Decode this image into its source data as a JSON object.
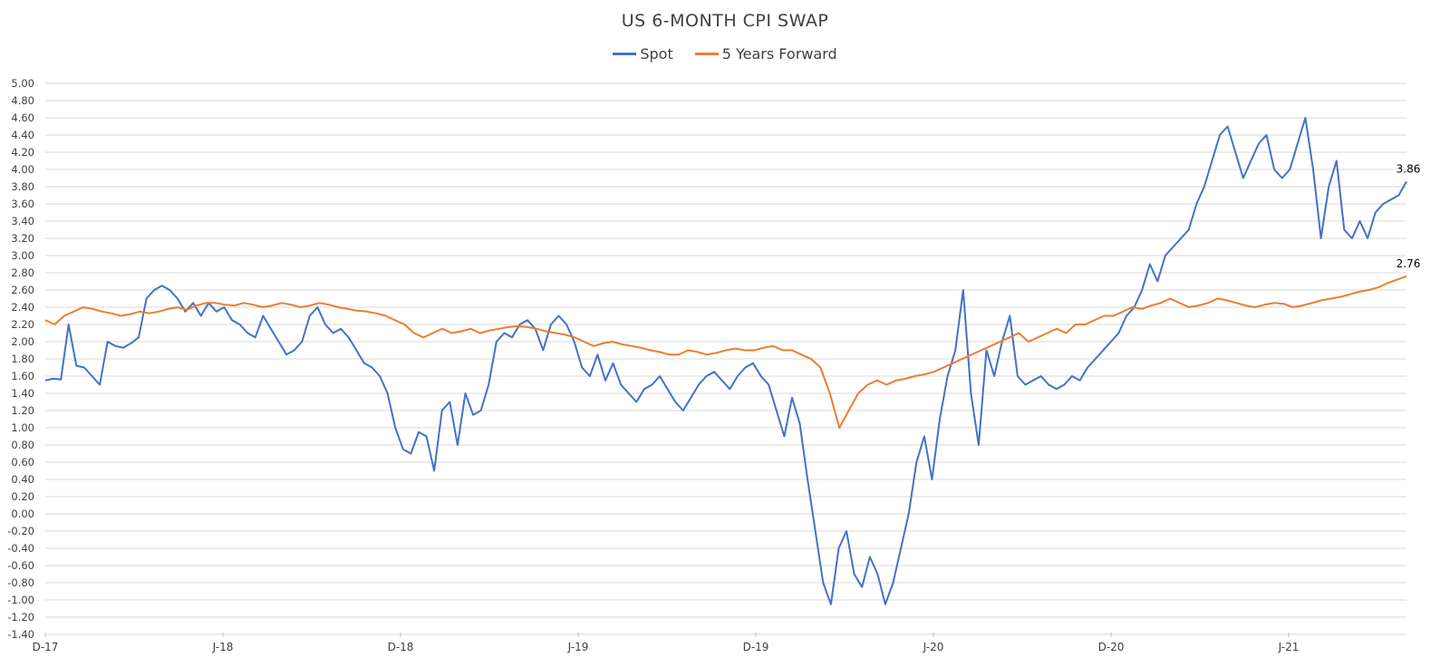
{
  "chart_data": {
    "type": "line",
    "title": "US 6-MONTH CPI SWAP",
    "xlabel": "",
    "ylabel": "",
    "ylim": [
      -1.4,
      5.0
    ],
    "y_ticks": [
      "5.00",
      "4.80",
      "4.60",
      "4.40",
      "4.20",
      "4.00",
      "3.80",
      "3.60",
      "3.40",
      "3.20",
      "3.00",
      "2.80",
      "2.60",
      "2.40",
      "2.20",
      "2.00",
      "1.80",
      "1.60",
      "1.40",
      "1.20",
      "1.00",
      "0.80",
      "0.60",
      "0.40",
      "0.20",
      "0.00",
      "-0.20",
      "-0.40",
      "-0.60",
      "-0.80",
      "-1.00",
      "-1.20",
      "-1.40"
    ],
    "x_ticks": [
      "D-17",
      "J-18",
      "D-18",
      "J-19",
      "D-19",
      "J-20",
      "D-20",
      "J-21"
    ],
    "grid": true,
    "legend_position": "top",
    "series": [
      {
        "name": "Spot",
        "color": "#4472C4",
        "end_label": "3.86",
        "values": [
          1.55,
          1.57,
          1.56,
          2.2,
          1.72,
          1.7,
          1.6,
          1.5,
          2.0,
          1.95,
          1.93,
          1.98,
          2.05,
          2.5,
          2.6,
          2.65,
          2.6,
          2.5,
          2.35,
          2.45,
          2.3,
          2.45,
          2.35,
          2.4,
          2.25,
          2.2,
          2.1,
          2.05,
          2.3,
          2.15,
          2.0,
          1.85,
          1.9,
          2.0,
          2.3,
          2.4,
          2.2,
          2.1,
          2.15,
          2.05,
          1.9,
          1.75,
          1.7,
          1.6,
          1.4,
          1.0,
          0.75,
          0.7,
          0.95,
          0.9,
          0.5,
          1.2,
          1.3,
          0.8,
          1.4,
          1.15,
          1.2,
          1.5,
          2.0,
          2.1,
          2.05,
          2.2,
          2.25,
          2.15,
          1.9,
          2.2,
          2.3,
          2.2,
          2.0,
          1.7,
          1.6,
          1.85,
          1.55,
          1.75,
          1.5,
          1.4,
          1.3,
          1.45,
          1.5,
          1.6,
          1.45,
          1.3,
          1.2,
          1.35,
          1.5,
          1.6,
          1.65,
          1.55,
          1.45,
          1.6,
          1.7,
          1.75,
          1.6,
          1.5,
          1.2,
          0.9,
          1.35,
          1.05,
          0.4,
          -0.2,
          -0.8,
          -1.05,
          -0.4,
          -0.2,
          -0.7,
          -0.85,
          -0.5,
          -0.7,
          -1.05,
          -0.8,
          -0.4,
          0.0,
          0.6,
          0.9,
          0.4,
          1.1,
          1.6,
          1.9,
          2.6,
          1.4,
          0.8,
          1.9,
          1.6,
          2.0,
          2.3,
          1.6,
          1.5,
          1.55,
          1.6,
          1.5,
          1.45,
          1.5,
          1.6,
          1.55,
          1.7,
          1.8,
          1.9,
          2.0,
          2.1,
          2.3,
          2.4,
          2.6,
          2.9,
          2.7,
          3.0,
          3.1,
          3.2,
          3.3,
          3.6,
          3.8,
          4.1,
          4.4,
          4.5,
          4.2,
          3.9,
          4.1,
          4.3,
          4.4,
          4.0,
          3.9,
          4.0,
          4.3,
          4.6,
          4.0,
          3.2,
          3.8,
          4.1,
          3.3,
          3.2,
          3.4,
          3.2,
          3.5,
          3.6,
          3.65,
          3.7,
          3.86
        ]
      },
      {
        "name": "5 Years Forward",
        "color": "#ED7D31",
        "end_label": "2.76",
        "values": [
          2.25,
          2.2,
          2.3,
          2.35,
          2.4,
          2.38,
          2.35,
          2.33,
          2.3,
          2.32,
          2.35,
          2.33,
          2.35,
          2.38,
          2.4,
          2.37,
          2.42,
          2.45,
          2.45,
          2.43,
          2.42,
          2.45,
          2.43,
          2.4,
          2.42,
          2.45,
          2.43,
          2.4,
          2.42,
          2.45,
          2.43,
          2.4,
          2.38,
          2.36,
          2.35,
          2.33,
          2.3,
          2.25,
          2.2,
          2.1,
          2.05,
          2.1,
          2.15,
          2.1,
          2.12,
          2.15,
          2.1,
          2.13,
          2.15,
          2.17,
          2.18,
          2.17,
          2.15,
          2.12,
          2.1,
          2.08,
          2.05,
          2.0,
          1.95,
          1.98,
          2.0,
          1.97,
          1.95,
          1.93,
          1.9,
          1.88,
          1.85,
          1.85,
          1.9,
          1.88,
          1.85,
          1.87,
          1.9,
          1.92,
          1.9,
          1.9,
          1.93,
          1.95,
          1.9,
          1.9,
          1.85,
          1.8,
          1.7,
          1.4,
          1.0,
          1.2,
          1.4,
          1.5,
          1.55,
          1.5,
          1.55,
          1.57,
          1.6,
          1.62,
          1.65,
          1.7,
          1.75,
          1.8,
          1.85,
          1.9,
          1.95,
          2.0,
          2.05,
          2.1,
          2.0,
          2.05,
          2.1,
          2.15,
          2.1,
          2.2,
          2.2,
          2.25,
          2.3,
          2.3,
          2.35,
          2.4,
          2.38,
          2.42,
          2.45,
          2.5,
          2.45,
          2.4,
          2.42,
          2.45,
          2.5,
          2.48,
          2.45,
          2.42,
          2.4,
          2.43,
          2.45,
          2.44,
          2.4,
          2.42,
          2.45,
          2.48,
          2.5,
          2.52,
          2.55,
          2.58,
          2.6,
          2.63,
          2.68,
          2.72,
          2.76
        ]
      }
    ]
  }
}
